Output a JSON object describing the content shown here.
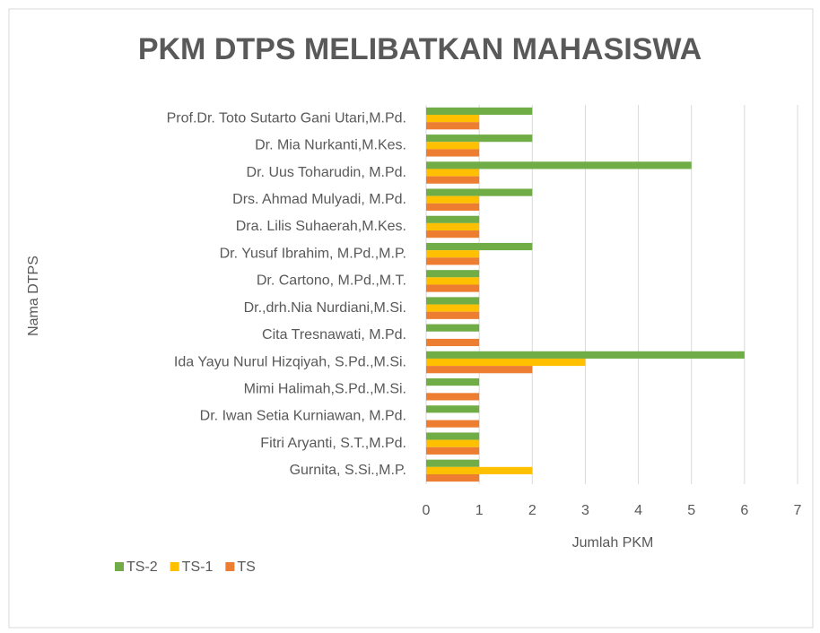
{
  "chart_data": {
    "type": "barh",
    "title": "PKM DTPS MELIBATKAN MAHASISWA",
    "xlabel": "Jumlah PKM",
    "ylabel": "Nama DTPS",
    "categories": [
      "Prof.Dr. Toto Sutarto Gani Utari,M.Pd.",
      "Dr. Mia Nurkanti,M.Kes.",
      "Dr. Uus Toharudin, M.Pd.",
      "Drs. Ahmad Mulyadi, M.Pd.",
      "Dra. Lilis Suhaerah,M.Kes.",
      "Dr. Yusuf Ibrahim, M.Pd.,M.P.",
      "Dr. Cartono, M.Pd.,M.T.",
      "Dr.,drh.Nia Nurdiani,M.Si.",
      "Cita Tresnawati, M.Pd.",
      "Ida Yayu Nurul Hizqiyah, S.Pd.,M.Si.",
      "Mimi Halimah,S.Pd.,M.Si.",
      "Dr. Iwan Setia Kurniawan, M.Pd.",
      "Fitri Aryanti, S.T.,M.Pd.",
      "Gurnita, S.Si.,M.P."
    ],
    "series": [
      {
        "name": "TS-2",
        "color": "#70ad47",
        "values": [
          2,
          2,
          5,
          2,
          1,
          2,
          1,
          1,
          1,
          6,
          1,
          1,
          1,
          1
        ]
      },
      {
        "name": "TS-1",
        "color": "#ffc000",
        "values": [
          1,
          1,
          1,
          1,
          1,
          1,
          1,
          1,
          0,
          3,
          0,
          0,
          1,
          2
        ]
      },
      {
        "name": "TS",
        "color": "#ed7d31",
        "values": [
          1,
          1,
          1,
          1,
          1,
          1,
          1,
          1,
          1,
          2,
          1,
          1,
          1,
          1
        ]
      }
    ],
    "xlim": [
      0,
      7
    ],
    "xticks": [
      0,
      1,
      2,
      3,
      4,
      5,
      6,
      7
    ],
    "grid": true,
    "legend": "bottom-left"
  }
}
